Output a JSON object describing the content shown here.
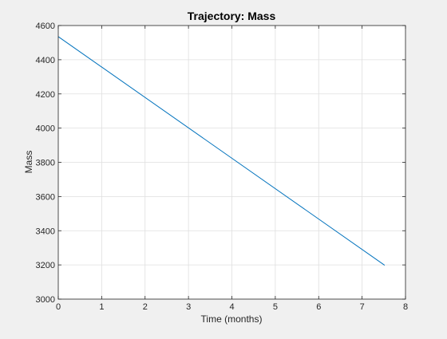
{
  "chart_data": {
    "type": "line",
    "title": "Trajectory: Mass",
    "xlabel": "Time (months)",
    "ylabel": "Mass",
    "xlim": [
      0,
      8
    ],
    "ylim": [
      3000,
      4600
    ],
    "xticks": [
      0,
      1,
      2,
      3,
      4,
      5,
      6,
      7,
      8
    ],
    "yticks": [
      3000,
      3200,
      3400,
      3600,
      3800,
      4000,
      4200,
      4400,
      4600
    ],
    "xtick_labels": [
      "0",
      "1",
      "2",
      "3",
      "4",
      "5",
      "6",
      "7",
      "8"
    ],
    "ytick_labels": [
      "3000",
      "3200",
      "3400",
      "3600",
      "3800",
      "4000",
      "4200",
      "4400",
      "4600"
    ],
    "grid": true,
    "series": [
      {
        "color": "#0072bd",
        "x": [
          0,
          7.52
        ],
        "y": [
          4535,
          3198
        ]
      }
    ]
  },
  "colors": {
    "figure_background": "#f0f0f0",
    "axes_background": "#ffffff",
    "grid": "#dfdfdf",
    "axis": "#262626"
  }
}
